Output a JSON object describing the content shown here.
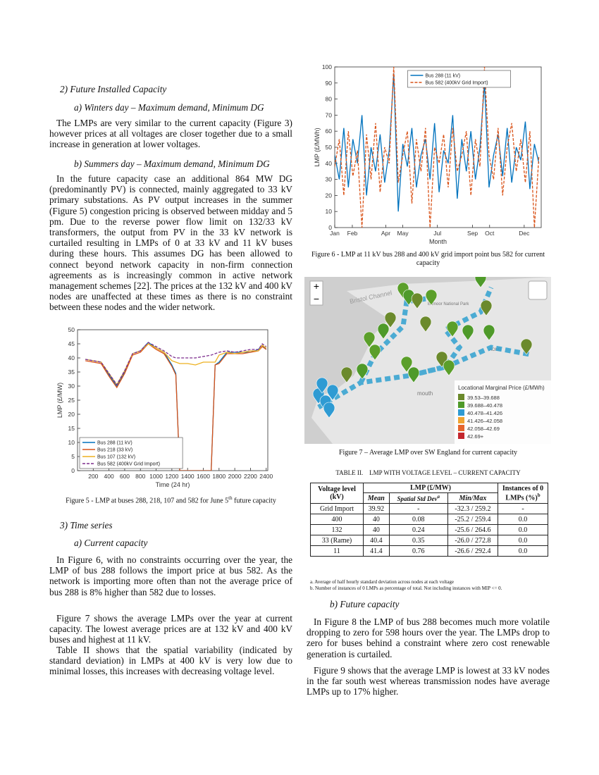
{
  "left": {
    "heading_future": "2)  Future Installed Capacity",
    "sub_winter": "a)  Winters day – Maximum demand, Minimum DG",
    "para_winter": "The LMPs are very similar to the current capacity (Figure 3) however prices at all voltages are closer together due to a small increase in generation at lower voltages.",
    "sub_summer": "b)  Summers day – Maximum demand, Minimum DG",
    "para_summer": "In the future capacity case an additional 864 MW DG (predominantly PV) is connected, mainly aggregated to 33 kV primary substations. As PV output increases in the summer (Figure 5)  congestion pricing is observed between midday and 5 pm. Due to the reverse power flow limit on 132/33 kV transformers, the output from PV in the 33 kV network is curtailed resulting in LMPs of 0 at 33 kV and 11 kV buses during these hours. This assumes DG has been allowed to connect beyond network capacity in non-firm connection agreements as is increasingly common in active network management schemes [22]. The prices at the 132 kV and 400 kV nodes are unaffected at these times as there is no constraint between these nodes and the wider network.",
    "caption_fig5": [
      "Figure 5 - LMP at buses 288, 218, 107 and 582 for June 5",
      "th",
      " future capacity"
    ],
    "heading_time": "3)  Time series",
    "sub_current": "a)  Current capacity",
    "para_fig6": "In Figure 6, with no constraints occurring over the year, the LMP of bus 288 follows the import price at bus 582. As the network is importing more often than not the average price of bus 288 is 8% higher than 582 due to losses.",
    "para_fig7": "Figure 7 shows the average LMPs over the year at current capacity. The lowest average prices are at 132 kV and 400 kV buses and highest at 11 kV.",
    "para_table": "Table II shows that the spatial variability (indicated by standard deviation) in LMPs at 400 kV is very low due to minimal losses, this increases with decreasing voltage level."
  },
  "right": {
    "caption_fig6": "Figure 6 - LMP at 11 kV bus 288 and 400 kV grid import point bus 582 for current capacity",
    "caption_fig7": "Figure 7 – Average LMP over SW England for current capacity",
    "sub_future": "b)  Future capacity",
    "para_fig8": "In Figure 8 the LMP of bus 288 becomes much more volatile dropping to zero for 598 hours over the year. The LMPs drop to zero for buses behind a constraint where zero cost renewable generation is curtailed.",
    "para_fig9": "Figure 9 shows that the average LMP is lowest at 33 kV nodes in the far south west whereas transmission nodes have average LMPs up to 17% higher."
  },
  "chart_data": [
    {
      "type": "line",
      "xlabel": "Time (24 hr)",
      "ylabel": "LMP (£/MW)",
      "x": [
        100,
        200,
        300,
        400,
        500,
        600,
        700,
        800,
        900,
        1000,
        1100,
        1200,
        1250,
        1300,
        1400,
        1500,
        1600,
        1700,
        1750,
        1800,
        1900,
        2000,
        2100,
        2200,
        2300,
        2350,
        2400
      ],
      "series": [
        {
          "name": "Bus 288 (11 kV)",
          "color": "#0072bd",
          "values": [
            39.5,
            39,
            38.5,
            34,
            30,
            35,
            41.5,
            42.5,
            45.5,
            43.5,
            42,
            37.5,
            34.5,
            0,
            0,
            0,
            0,
            0,
            37.5,
            38.5,
            42,
            42,
            42,
            42,
            43,
            44.5,
            43
          ]
        },
        {
          "name": "Bus 218 (33 kV)",
          "color": "#d95319",
          "values": [
            39,
            38.5,
            38,
            33.5,
            29.5,
            34.5,
            41,
            42,
            45,
            43,
            41.5,
            37,
            34,
            0,
            0,
            0,
            0,
            0,
            37.5,
            38,
            41.5,
            41.5,
            41.5,
            42,
            42.5,
            44,
            43
          ]
        },
        {
          "name": "Bus 107 (132 kV)",
          "color": "#edb120",
          "values": [
            39.5,
            39,
            38.5,
            34.5,
            30.5,
            35.5,
            41.5,
            42.5,
            45,
            43.5,
            42,
            39,
            38.5,
            38,
            38,
            37.5,
            38.5,
            38.5,
            38.5,
            41,
            42,
            41.5,
            42,
            42.5,
            42.5,
            44.5,
            43.5
          ]
        },
        {
          "name": "Bus 582 (400kV Grid Import)",
          "color": "#7e2f8e",
          "dashed": true,
          "values": [
            39.5,
            39,
            38.5,
            34.5,
            30.5,
            35.5,
            41.5,
            42.5,
            45.5,
            44,
            42.5,
            40.5,
            40,
            40,
            40,
            40,
            40.5,
            41,
            41.5,
            42,
            42.5,
            42,
            42.5,
            43,
            43,
            45,
            44
          ]
        }
      ],
      "xlim": [
        0,
        2420
      ],
      "xticks": [
        200,
        400,
        600,
        800,
        1000,
        1200,
        1400,
        1600,
        1800,
        2000,
        2200,
        2400
      ],
      "ylim": [
        0,
        50
      ],
      "yticks": [
        0,
        5,
        10,
        15,
        20,
        25,
        30,
        35,
        40,
        45,
        50
      ],
      "legend": "lower left"
    },
    {
      "type": "line",
      "xlabel": "Month",
      "ylabel": "LMP (£/MWh)",
      "x": [
        1,
        9,
        17,
        25,
        33,
        41,
        49,
        57,
        65,
        73,
        81,
        89,
        97,
        105,
        113,
        121,
        129,
        137,
        145,
        153,
        161,
        169,
        177,
        185,
        193,
        201,
        209,
        217,
        225,
        233,
        241,
        249,
        257,
        265,
        273,
        281,
        289,
        297,
        305,
        313,
        321,
        329,
        337,
        345,
        353,
        361
      ],
      "series": [
        {
          "name": "Bus 288 (11 kV)",
          "color": "#0072bd",
          "values": [
            45,
            30,
            62,
            25,
            55,
            40,
            70,
            20,
            50,
            35,
            58,
            28,
            48,
            96,
            10,
            52,
            38,
            62,
            25,
            45,
            55,
            30,
            65,
            22,
            48,
            40,
            70,
            18,
            55,
            35,
            60,
            30,
            50,
            90,
            25,
            45,
            58,
            32,
            62,
            28,
            50,
            42,
            66,
            24,
            52,
            40
          ]
        },
        {
          "name": "Bus 582 (400kV Grid Import)",
          "color": "#d95319",
          "dashed": true,
          "values": [
            38,
            55,
            20,
            60,
            32,
            48,
            0,
            58,
            30,
            65,
            22,
            50,
            40,
            100,
            28,
            45,
            60,
            15,
            55,
            35,
            62,
            0,
            50,
            40,
            58,
            25,
            62,
            35,
            45,
            60,
            20,
            55,
            38,
            100,
            45,
            30,
            62,
            20,
            50,
            65,
            35,
            55,
            28,
            60,
            0,
            45
          ]
        }
      ],
      "xlim": [
        1,
        365
      ],
      "xticks": [
        {
          "value": 1,
          "label": "Jan"
        },
        {
          "value": 32,
          "label": "Feb"
        },
        {
          "value": 91,
          "label": "Apr"
        },
        {
          "value": 121,
          "label": "May"
        },
        {
          "value": 182,
          "label": "Jul"
        },
        {
          "value": 244,
          "label": "Sep"
        },
        {
          "value": 274,
          "label": "Oct"
        },
        {
          "value": 335,
          "label": "Dec"
        }
      ],
      "ylim": [
        0,
        100
      ],
      "yticks": [
        0,
        10,
        20,
        30,
        40,
        50,
        60,
        70,
        80,
        90,
        100
      ],
      "legend": "upper center"
    }
  ],
  "map": {
    "sea_label": "Bristol Channel",
    "park_label": "Exmoor National Park",
    "aonb_label": "AONB",
    "town_label": "mouth",
    "zoom_in": "+",
    "zoom_out": "−",
    "legend": {
      "title": "Locational Marginal Price (£/MWh)",
      "items": [
        {
          "label": "39.53–39.688",
          "color": "#6b8a2c"
        },
        {
          "label": "39.688–40.478",
          "color": "#4f9a2a"
        },
        {
          "label": "40.478–41.426",
          "color": "#2f9bd3"
        },
        {
          "label": "41.426–42.058",
          "color": "#f0a431"
        },
        {
          "label": "42.058–42.69",
          "color": "#e5652d"
        },
        {
          "label": "42.69+",
          "color": "#c4262e"
        }
      ]
    }
  },
  "table": {
    "title": "TABLE II.",
    "subtitle": "LMP WITH VOLTAGE LEVEL – CURRENT CAPACITY",
    "head": {
      "voltage": "Voltage level (kV)",
      "lmp": "LMP (£/MW)",
      "instances": "Instances of 0 LMPs (%)",
      "instances_note": "b",
      "mean": "Mean",
      "std": "Spatial Std Dev",
      "std_note": "a",
      "minmax": "Min/Max"
    },
    "rows": [
      [
        "Grid Import",
        "39.92",
        "-",
        "-32.3 / 259.2",
        "-"
      ],
      [
        "400",
        "40",
        "0.08",
        "-25.2 / 259.4",
        "0.0"
      ],
      [
        "132",
        "40",
        "0.24",
        "-25.6 / 264.6",
        "0.0"
      ],
      [
        "33 (Rame)",
        "40.4",
        "0.35",
        "-26.0 / 272.8",
        "0.0"
      ],
      [
        "11",
        "41.4",
        "0.76",
        "-26.6 / 292.4",
        "0.0"
      ]
    ],
    "notes": [
      "a. Average of half hourly standard deviation across nodes at each voltage",
      "b. Number of instances of 0 LMPs as percentage of total. Not including instances with MIP <= 0."
    ]
  }
}
